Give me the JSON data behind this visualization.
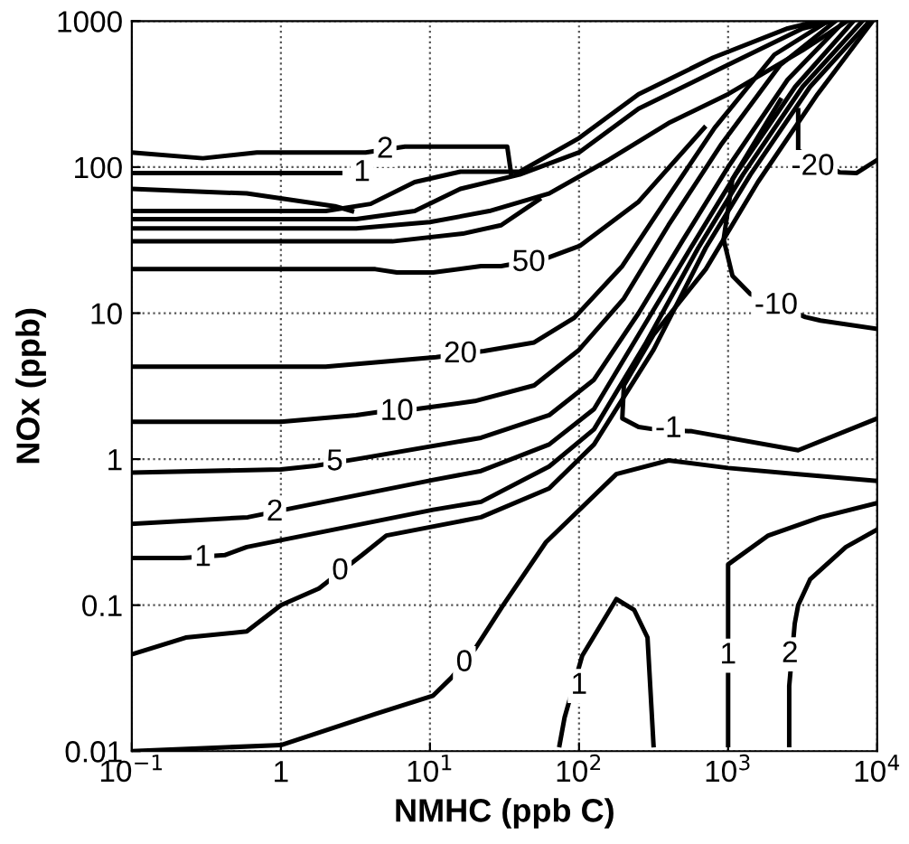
{
  "chart_data": {
    "type": "line",
    "xlabel": "NMHC (ppb C)",
    "ylabel": "NOx (ppb)",
    "log": "xy",
    "xlim": [
      0.1,
      10000
    ],
    "ylim": [
      0.01,
      1000
    ],
    "xticks": [
      {
        "value": 0.1,
        "label": "10$^{−1}$"
      },
      1,
      {
        "value": 10,
        "label": "10$^{1}$"
      },
      {
        "value": 100,
        "label": "10$^{2}$"
      },
      {
        "value": 1000,
        "label": "10$^{3}$"
      },
      {
        "value": 10000,
        "label": "10$^{4}$"
      }
    ],
    "yticks": [
      0.01,
      0.1,
      1,
      10,
      100,
      1000
    ],
    "grid": true,
    "legend": false,
    "marker": "none",
    "line_style": "solid",
    "series": [
      {
        "color": "#000000",
        "x": [
          0.1,
          0.3,
          0.69,
          3.7,
          6.8,
          22,
          33,
          35
        ],
        "values": [
          126,
          115,
          126,
          126,
          138,
          138,
          138,
          91
        ]
      },
      {
        "color": "#000000",
        "x": [
          0.1,
          2.5
        ],
        "values": [
          91,
          91
        ]
      },
      {
        "color": "#000000",
        "x": [
          0.1,
          0.59,
          2.3,
          3.0
        ],
        "values": [
          71,
          66,
          54,
          50
        ]
      },
      {
        "color": "#000000",
        "x": [
          0.1,
          2.0,
          4.0,
          7.9,
          16,
          40,
          100,
          251,
          794,
          2512,
          3981
        ],
        "values": [
          50,
          50,
          56,
          79,
          93,
          93,
          158,
          316,
          562,
          891,
          1000
        ]
      },
      {
        "color": "#000000",
        "x": [
          0.1,
          3.2,
          7.9,
          16,
          40,
          100,
          251,
          794,
          3162,
          5012
        ],
        "values": [
          44,
          44,
          50,
          71,
          89,
          126,
          251,
          447,
          891,
          1000
        ]
      },
      {
        "color": "#000000",
        "x": [
          0.1,
          3.2,
          10,
          25,
          63,
          158,
          398,
          1000,
          3162,
          6310
        ],
        "values": [
          38,
          38,
          42,
          50,
          66,
          112,
          200,
          316,
          631,
          1000
        ]
      },
      {
        "color": "#000000",
        "x": [
          0.1,
          5.6,
          16.6,
          30,
          54
        ],
        "values": [
          31,
          31,
          35,
          40,
          60
        ]
      },
      {
        "color": "#000000",
        "x": [
          0.1,
          4.3,
          6.0,
          10.5,
          22,
          30,
          62,
          102,
          251,
          692
        ],
        "values": [
          20,
          20,
          19,
          19,
          21,
          21,
          24,
          29,
          58,
          186
        ]
      },
      {
        "color": "#000000",
        "x": [
          0.1,
          2.0,
          11,
          23,
          50,
          93,
          195,
          398,
          813,
          2042,
          4677
        ],
        "values": [
          4.3,
          4.3,
          5.0,
          5.5,
          6.3,
          9.3,
          21,
          63,
          186,
          589,
          1000
        ]
      },
      {
        "color": "#000000",
        "x": [
          0.1,
          1.0,
          3.2,
          4.5,
          8.0,
          20,
          50,
          100,
          200,
          398,
          891,
          2239,
          5248
        ],
        "values": [
          1.8,
          1.8,
          2.0,
          2.1,
          2.2,
          2.5,
          3.2,
          5.6,
          12.6,
          40,
          141,
          501,
          1000
        ]
      },
      {
        "color": "#000000",
        "x": [
          0.1,
          1.0,
          1.7,
          3.2,
          22,
          63,
          126,
          251,
          501,
          1000,
          2512,
          6026
        ],
        "values": [
          0.81,
          0.85,
          0.9,
          1.0,
          1.4,
          2.0,
          3.5,
          10,
          32,
          100,
          398,
          1000
        ]
      },
      {
        "color": "#000000",
        "x": [
          0.1,
          0.6,
          1.3,
          10.5,
          22,
          63,
          126,
          251,
          562,
          1122,
          2818,
          6918
        ],
        "values": [
          0.36,
          0.4,
          0.47,
          0.72,
          0.83,
          1.26,
          2.2,
          7.1,
          28,
          89,
          355,
          1000
        ]
      },
      {
        "color": "#000000",
        "x": [
          0.1,
          0.22,
          0.42,
          0.59,
          10.5,
          22,
          63,
          126,
          282,
          631,
          1259,
          3162,
          7943
        ],
        "values": [
          0.21,
          0.21,
          0.22,
          0.25,
          0.45,
          0.51,
          0.89,
          1.6,
          6.3,
          28,
          89,
          355,
          1000
        ]
      },
      {
        "color": "#000000",
        "x": [
          0.1,
          0.23,
          0.59,
          1.0,
          1.8,
          3.5,
          5.1,
          22,
          63,
          126,
          316,
          708,
          1413,
          3548,
          8913
        ],
        "values": [
          0.046,
          0.06,
          0.066,
          0.1,
          0.13,
          0.22,
          0.3,
          0.4,
          0.63,
          1.26,
          5.6,
          28,
          89,
          355,
          1000
        ]
      },
      {
        "color": "#000000",
        "x": [
          0.1,
          1.0,
          4.3,
          10.5,
          14,
          20,
          31,
          60,
          178,
          398,
          1000,
          2951,
          10000
        ],
        "values": [
          0.01,
          0.011,
          0.018,
          0.024,
          0.032,
          0.05,
          0.1,
          0.27,
          0.79,
          0.98,
          0.87,
          0.79,
          0.71
        ]
      },
      {
        "color": "#000000",
        "x": [
          9333,
          3981,
          1585,
          708,
          316,
          200,
          195,
          251,
          320,
          575,
          2951,
          10000
        ],
        "values": [
          1000,
          316,
          79,
          20,
          7.1,
          3.2,
          1.9,
          1.66,
          1.6,
          1.55,
          1.15,
          1.9
        ]
      },
      {
        "color": "#000000",
        "x": [
          2239,
          1070,
          933,
          1070,
          1413,
          3300,
          4169,
          10000
        ],
        "values": [
          288,
          83,
          32,
          18,
          13.5,
          9.4,
          8.9,
          7.8
        ]
      },
      {
        "color": "#000000",
        "x": [
          2951,
          2951,
          5600,
          7244,
          10000
        ],
        "values": [
          245,
          130,
          92,
          91,
          112
        ]
      },
      {
        "color": "#000000",
        "x": [
          74,
          80,
          105,
          178,
          234,
          288,
          316
        ],
        "values": [
          0.011,
          0.017,
          0.045,
          0.11,
          0.093,
          0.06,
          0.011
        ]
      },
      {
        "color": "#000000",
        "x": [
          1000,
          1000,
          1000,
          1000,
          1862,
          4169,
          10000
        ],
        "values": [
          0.011,
          0.025,
          0.08,
          0.19,
          0.3,
          0.4,
          0.5
        ]
      },
      {
        "color": "#000000",
        "x": [
          2570,
          2570,
          2800,
          2951,
          3548,
          6166,
          10000
        ],
        "values": [
          0.011,
          0.028,
          0.075,
          0.1,
          0.15,
          0.25,
          0.33
        ]
      }
    ],
    "annotations": [
      {
        "text": "2",
        "x": 5.0,
        "y": 131
      },
      {
        "text": "1",
        "x": 3.5,
        "y": 91
      },
      {
        "text": "50",
        "x": 46,
        "y": 22
      },
      {
        "text": "20",
        "x": 16,
        "y": 5.2
      },
      {
        "text": "10",
        "x": 6.0,
        "y": 2.1
      },
      {
        "text": "5",
        "x": 2.3,
        "y": 0.95
      },
      {
        "text": "2",
        "x": 0.91,
        "y": 0.43
      },
      {
        "text": "1",
        "x": 0.3,
        "y": 0.21
      },
      {
        "text": "0",
        "x": 2.5,
        "y": 0.17
      },
      {
        "text": "0",
        "x": 17,
        "y": 0.04
      },
      {
        "text": "-1",
        "x": 398,
        "y": 1.6
      },
      {
        "text": "-10",
        "x": 2100,
        "y": 11.2
      },
      {
        "text": "-20",
        "x": 3700,
        "y": 100
      },
      {
        "text": "1",
        "x": 100,
        "y": 0.028
      },
      {
        "text": "1",
        "x": 1000,
        "y": 0.045
      },
      {
        "text": "2",
        "x": 2600,
        "y": 0.046
      }
    ]
  }
}
